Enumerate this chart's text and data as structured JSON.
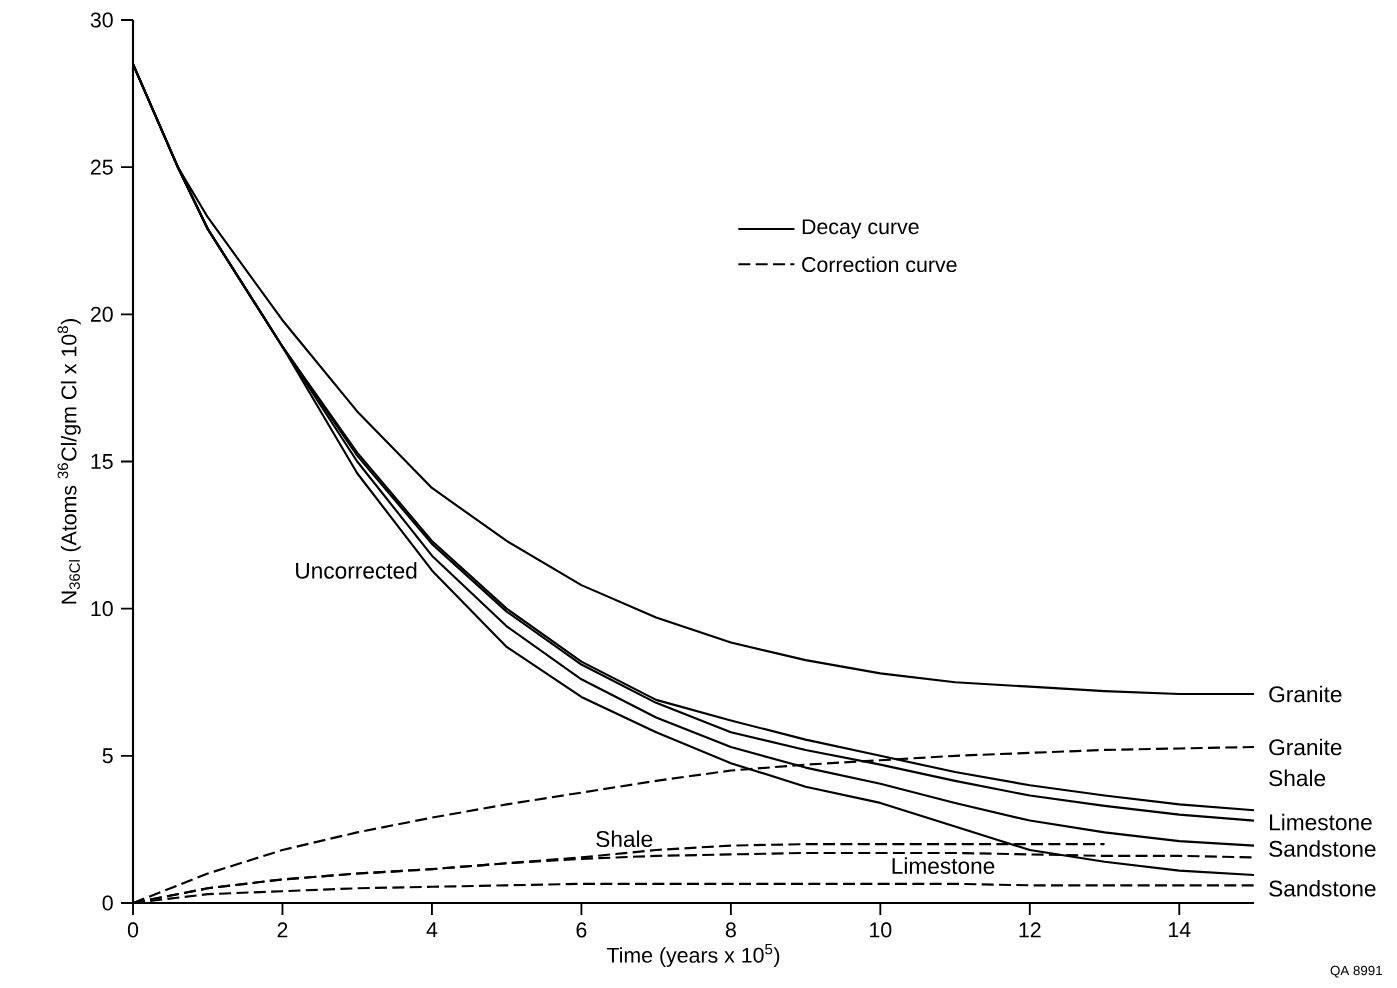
{
  "chart_data": {
    "type": "line",
    "xlabel": "Time (years x 10$^{5}$)",
    "ylabel": "N$_{36Cl}$ (Atoms $^{36}$Cl/gm Cl x 10$^{8}$)",
    "xlim": [
      0,
      15
    ],
    "ylim": [
      0,
      30
    ],
    "xticks": [
      0,
      2,
      4,
      6,
      8,
      10,
      12,
      14
    ],
    "yticks": [
      0,
      5,
      10,
      15,
      20,
      25,
      30
    ],
    "grid": false,
    "annotations": [
      "Decay curve",
      "Correction curve",
      "QA 8991"
    ],
    "series": [
      {
        "name": "Granite",
        "color": "#000000",
        "line_style": "solid",
        "x": [
          0,
          0.6,
          1,
          2,
          3,
          4,
          5,
          6,
          7,
          8,
          9,
          10,
          11,
          12,
          13,
          14,
          15
        ],
        "values": [
          28.5,
          25,
          23.3,
          19.8,
          16.7,
          14.1,
          12.3,
          10.8,
          9.7,
          8.85,
          8.25,
          7.8,
          7.5,
          7.35,
          7.2,
          7.1,
          7.1
        ]
      },
      {
        "name": "Shale",
        "color": "#000000",
        "line_style": "solid",
        "x": [
          0,
          0.6,
          1,
          2,
          3,
          4,
          5,
          6,
          7,
          8,
          9,
          10,
          11,
          12,
          13,
          14,
          15
        ],
        "values": [
          28.5,
          25,
          22.9,
          18.9,
          15.3,
          12.3,
          10.0,
          8.2,
          6.9,
          6.2,
          5.55,
          5.0,
          4.45,
          4.0,
          3.65,
          3.35,
          3.15
        ]
      },
      {
        "name": "Limestone",
        "color": "#000000",
        "line_style": "solid",
        "x": [
          0,
          0.6,
          1,
          2,
          3,
          4,
          5,
          6,
          7,
          8,
          9,
          10,
          11,
          12,
          13,
          14,
          15
        ],
        "values": [
          28.5,
          25,
          22.9,
          18.9,
          15.2,
          12.2,
          9.9,
          8.1,
          6.8,
          5.8,
          5.2,
          4.7,
          4.15,
          3.65,
          3.3,
          3.0,
          2.8
        ]
      },
      {
        "name": "Sandstone",
        "color": "#000000",
        "line_style": "solid",
        "x": [
          0,
          0.6,
          1,
          2,
          3,
          4,
          5,
          6,
          7,
          8,
          9,
          10,
          11,
          12,
          13,
          14,
          15
        ],
        "values": [
          28.5,
          25,
          22.9,
          18.9,
          15.0,
          11.8,
          9.4,
          7.6,
          6.3,
          5.3,
          4.6,
          4.05,
          3.4,
          2.8,
          2.4,
          2.1,
          1.95
        ]
      },
      {
        "name": "Uncorrected",
        "color": "#000000",
        "line_style": "solid",
        "x": [
          0,
          0.6,
          1,
          2,
          3,
          4,
          5,
          6,
          7,
          8,
          9,
          10,
          11,
          12,
          13,
          14,
          15
        ],
        "values": [
          28.5,
          25,
          22.9,
          18.9,
          14.6,
          11.3,
          8.7,
          7.0,
          5.8,
          4.75,
          3.95,
          3.4,
          2.6,
          1.8,
          1.4,
          1.1,
          0.95
        ]
      },
      {
        "name": "Granite",
        "color": "#000000",
        "line_style": "dashed",
        "x": [
          0,
          1,
          2,
          3,
          4,
          5,
          6,
          7,
          8,
          9,
          10,
          11,
          12,
          13,
          14,
          15
        ],
        "values": [
          0,
          1.0,
          1.8,
          2.4,
          2.9,
          3.35,
          3.75,
          4.15,
          4.5,
          4.7,
          4.85,
          5.0,
          5.1,
          5.2,
          5.25,
          5.3
        ]
      },
      {
        "name": "Shale",
        "color": "#000000",
        "line_style": "dashed",
        "x": [
          0,
          1,
          2,
          3,
          4,
          5,
          6,
          7,
          8,
          9,
          10,
          11,
          12,
          13
        ],
        "values": [
          0,
          0.5,
          0.8,
          1.0,
          1.15,
          1.35,
          1.55,
          1.8,
          1.95,
          2.0,
          2.0,
          2.0,
          2.0,
          2.0
        ]
      },
      {
        "name": "Limestone",
        "color": "#000000",
        "line_style": "dashed",
        "x": [
          0,
          1,
          2,
          3,
          4,
          5,
          6,
          7,
          8,
          9,
          10,
          11,
          12,
          13,
          14,
          15
        ],
        "values": [
          0,
          0.5,
          0.8,
          1.0,
          1.15,
          1.35,
          1.5,
          1.6,
          1.65,
          1.7,
          1.7,
          1.7,
          1.65,
          1.6,
          1.6,
          1.55
        ]
      },
      {
        "name": "Sandstone",
        "color": "#000000",
        "line_style": "dashed",
        "x": [
          0,
          1,
          2,
          3,
          4,
          5,
          6,
          7,
          8,
          9,
          10,
          11,
          12,
          13,
          14,
          15
        ],
        "values": [
          0,
          0.3,
          0.4,
          0.5,
          0.55,
          0.6,
          0.65,
          0.65,
          0.65,
          0.65,
          0.65,
          0.65,
          0.6,
          0.6,
          0.6,
          0.6
        ]
      }
    ]
  }
}
